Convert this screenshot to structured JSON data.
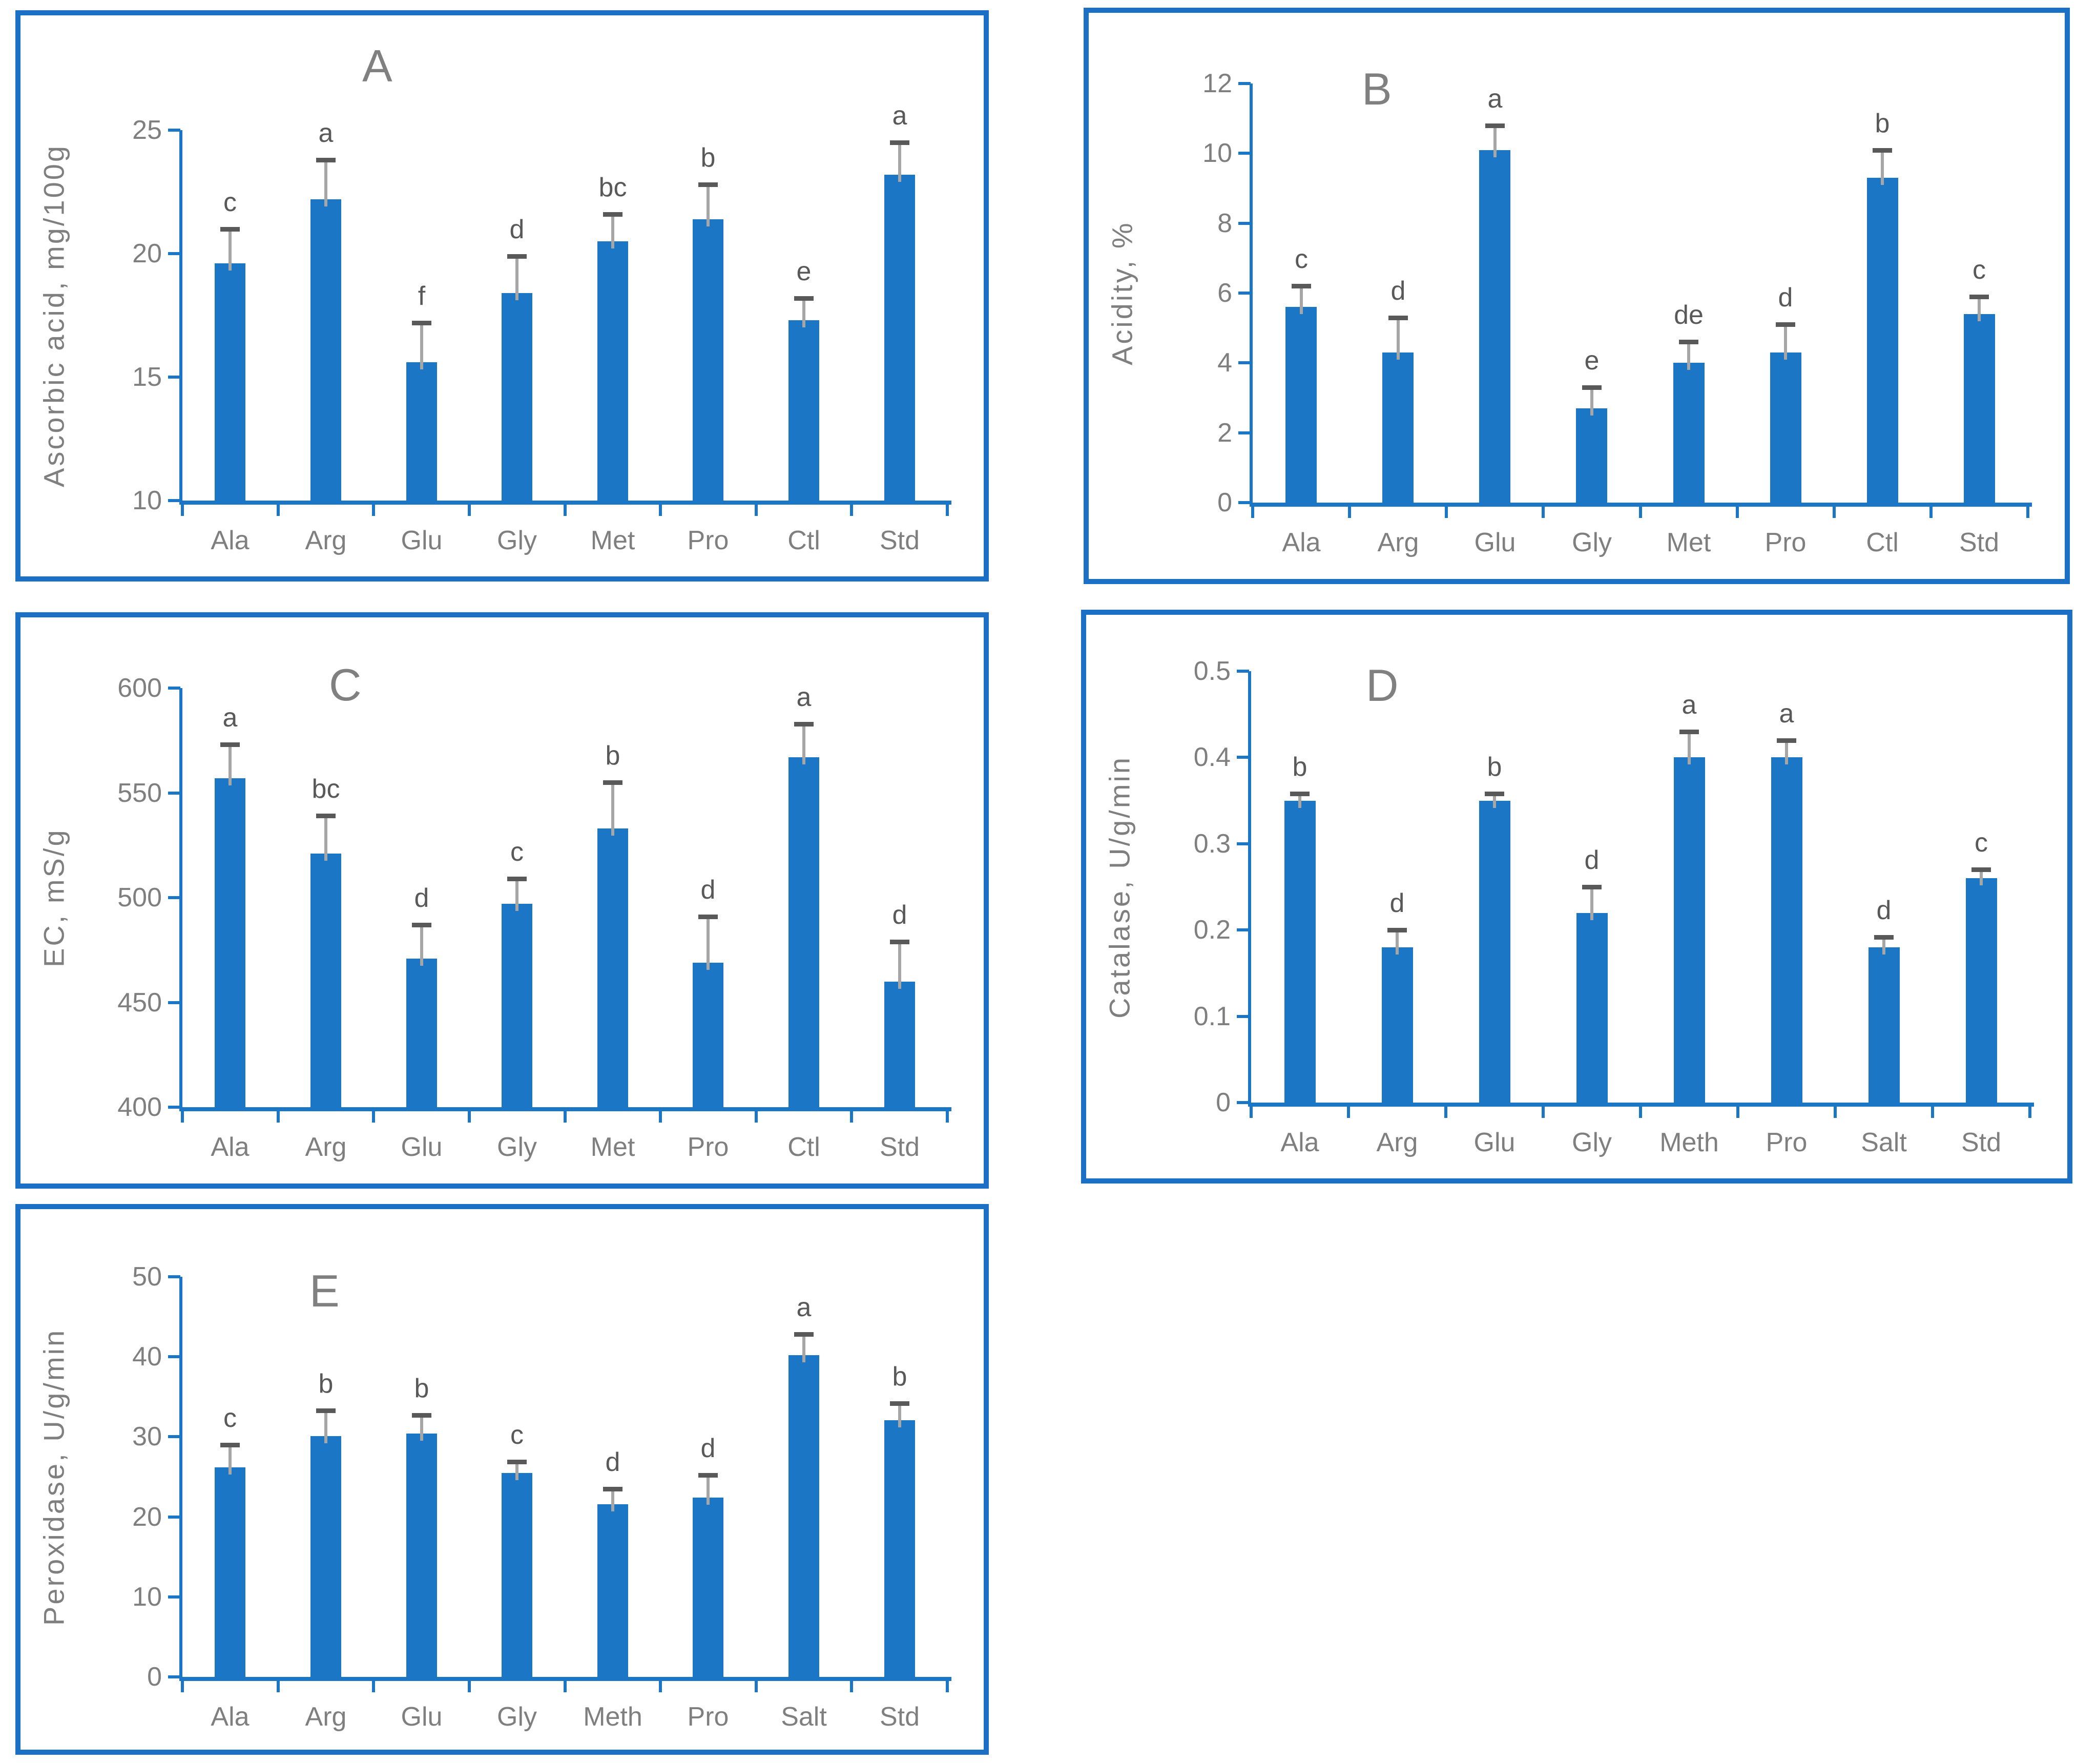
{
  "figure": {
    "background": "#ffffff",
    "colors": {
      "bar": "#1b76c6",
      "axis": "#1b76c6",
      "panel_border": "#1b6fc5",
      "tick_label_gray": "#7f7f7f",
      "sig_letter_gray": "#595959",
      "whisker_gray": "#a6a6a6",
      "cap_gray": "#595959"
    }
  },
  "chart_data": [
    {
      "type": "bar",
      "panel_label": "A",
      "ylabel": "Ascorbic acid, mg/100g",
      "xlabel": "",
      "ylim": [
        10,
        25
      ],
      "ytick_values": [
        10,
        15,
        20,
        25
      ],
      "ytick_labels": [
        "10",
        "15",
        "20",
        "25"
      ],
      "grid": "off",
      "categories": [
        "Ala",
        "Arg",
        "Glu",
        "Gly",
        "Met",
        "Pro",
        "Ctl",
        "Std"
      ],
      "values": [
        19.6,
        22.2,
        15.6,
        18.4,
        20.5,
        21.4,
        17.3,
        23.2
      ],
      "errors_upper": [
        1.4,
        1.6,
        1.6,
        1.5,
        1.1,
        1.4,
        0.9,
        1.3
      ],
      "sig_letters": [
        "c",
        "a",
        "f",
        "d",
        "bc",
        "b",
        "e",
        "a"
      ]
    },
    {
      "type": "bar",
      "panel_label": "B",
      "ylabel": "Acidity, %",
      "xlabel": "",
      "ylim": [
        0,
        12
      ],
      "ytick_values": [
        0,
        2,
        4,
        6,
        8,
        10,
        12
      ],
      "ytick_labels": [
        "0",
        "2",
        "4",
        "6",
        "8",
        "10",
        "12"
      ],
      "grid": "off",
      "categories": [
        "Ala",
        "Arg",
        "Glu",
        "Gly",
        "Met",
        "Pro",
        "Ctl",
        "Std"
      ],
      "values": [
        5.6,
        4.3,
        10.1,
        2.7,
        4.0,
        4.3,
        9.3,
        5.4
      ],
      "errors_upper": [
        0.6,
        1.0,
        0.7,
        0.6,
        0.6,
        0.8,
        0.8,
        0.5
      ],
      "sig_letters": [
        "c",
        "d",
        "a",
        "e",
        "de",
        "d",
        "b",
        "c"
      ]
    },
    {
      "type": "bar",
      "panel_label": "C",
      "ylabel": "EC, mS/g",
      "xlabel": "",
      "ylim": [
        400,
        600
      ],
      "ytick_values": [
        400,
        450,
        500,
        550,
        600
      ],
      "ytick_labels": [
        "400",
        "450",
        "500",
        "550",
        "600"
      ],
      "grid": "off",
      "categories": [
        "Ala",
        "Arg",
        "Glu",
        "Gly",
        "Met",
        "Pro",
        "Ctl",
        "Std"
      ],
      "values": [
        557,
        521,
        471,
        497,
        533,
        469,
        567,
        460
      ],
      "errors_upper": [
        16,
        18,
        16,
        12,
        22,
        22,
        16,
        19
      ],
      "sig_letters": [
        "a",
        "bc",
        "d",
        "c",
        "b",
        "d",
        "a",
        "d"
      ]
    },
    {
      "type": "bar",
      "panel_label": "D",
      "ylabel": "Catalase, U/g/min",
      "xlabel": "",
      "ylim": [
        0,
        0.5
      ],
      "ytick_values": [
        0,
        0.1,
        0.2,
        0.3,
        0.4,
        0.5
      ],
      "ytick_labels": [
        "0",
        "0.1",
        "0.2",
        "0.3",
        "0.4",
        "0.5"
      ],
      "grid": "off",
      "categories": [
        "Ala",
        "Arg",
        "Glu",
        "Gly",
        "Meth",
        "Pro",
        "Salt",
        "Std"
      ],
      "values": [
        0.35,
        0.18,
        0.35,
        0.22,
        0.4,
        0.4,
        0.18,
        0.26
      ],
      "errors_upper": [
        0.008,
        0.02,
        0.008,
        0.03,
        0.03,
        0.02,
        0.012,
        0.01
      ],
      "sig_letters": [
        "b",
        "d",
        "b",
        "d",
        "a",
        "a",
        "d",
        "c"
      ]
    },
    {
      "type": "bar",
      "panel_label": "E",
      "ylabel": "Peroxidase, U/g/min",
      "xlabel": "",
      "ylim": [
        0,
        50
      ],
      "ytick_values": [
        0,
        10,
        20,
        30,
        40,
        50
      ],
      "ytick_labels": [
        "0",
        "10",
        "20",
        "30",
        "40",
        "50"
      ],
      "grid": "off",
      "categories": [
        "Ala",
        "Arg",
        "Glu",
        "Gly",
        "Meth",
        "Pro",
        "Salt",
        "Std"
      ],
      "values": [
        26.2,
        30.1,
        30.4,
        25.5,
        21.6,
        22.4,
        40.2,
        32.1
      ],
      "errors_upper": [
        2.8,
        3.2,
        2.3,
        1.4,
        1.9,
        2.8,
        2.6,
        2.1
      ],
      "sig_letters": [
        "c",
        "b",
        "b",
        "c",
        "d",
        "d",
        "a",
        "b"
      ]
    }
  ]
}
